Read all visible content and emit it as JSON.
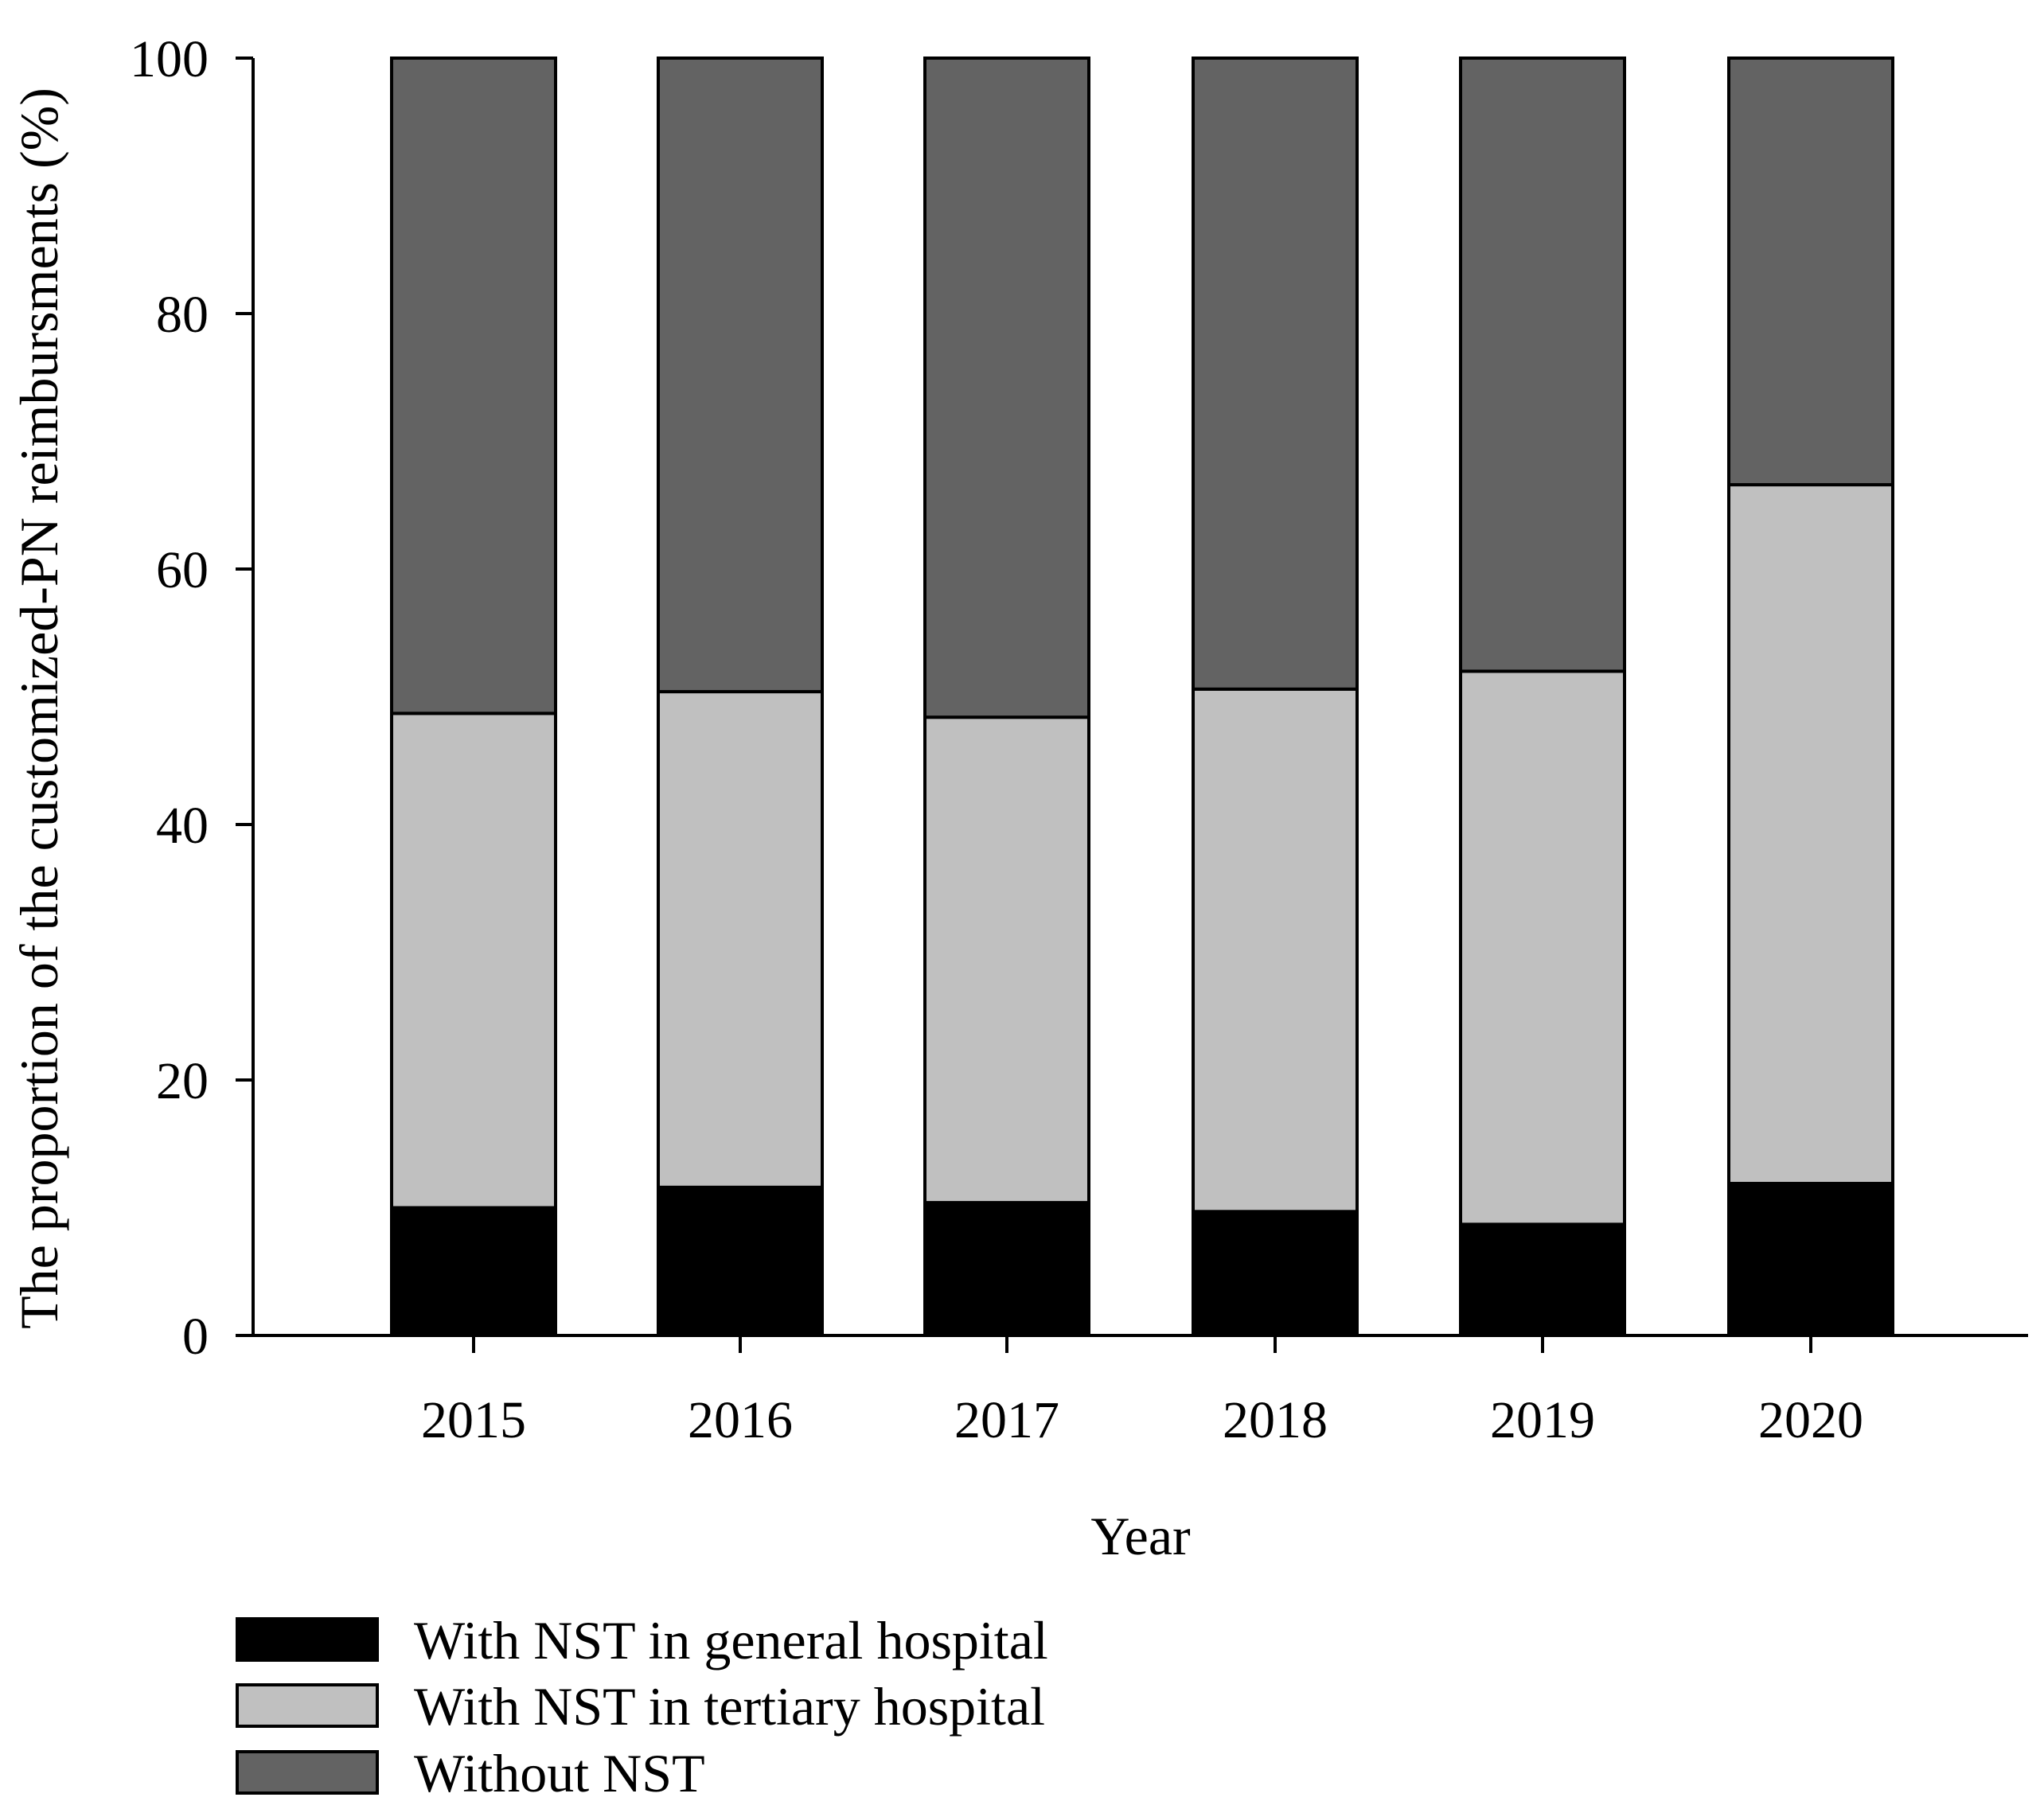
{
  "chart_data": {
    "type": "bar",
    "stacked": true,
    "title": "",
    "xlabel": "Year",
    "ylabel": "The proportion of the customized-PN reimbursments (%)",
    "ylim": [
      0,
      100
    ],
    "yticks": [
      "0",
      "20",
      "40",
      "60",
      "80",
      "100"
    ],
    "categories": [
      "2015",
      "2016",
      "2017",
      "2018",
      "2019",
      "2020"
    ],
    "series": [
      {
        "name": "With NST in general hospital",
        "color": "#000000",
        "values": [
          10.0,
          11.6,
          10.4,
          9.7,
          8.7,
          11.9
        ]
      },
      {
        "name": "With NST in tertiary hospital",
        "color": "#c0c0c0",
        "values": [
          38.7,
          38.8,
          38.0,
          40.9,
          43.3,
          54.7
        ]
      },
      {
        "name": "Without NST",
        "color": "#636363",
        "values": [
          51.3,
          49.6,
          51.6,
          49.4,
          48.0,
          33.4
        ]
      }
    ],
    "grid": false,
    "legend_position": "bottom-left"
  }
}
